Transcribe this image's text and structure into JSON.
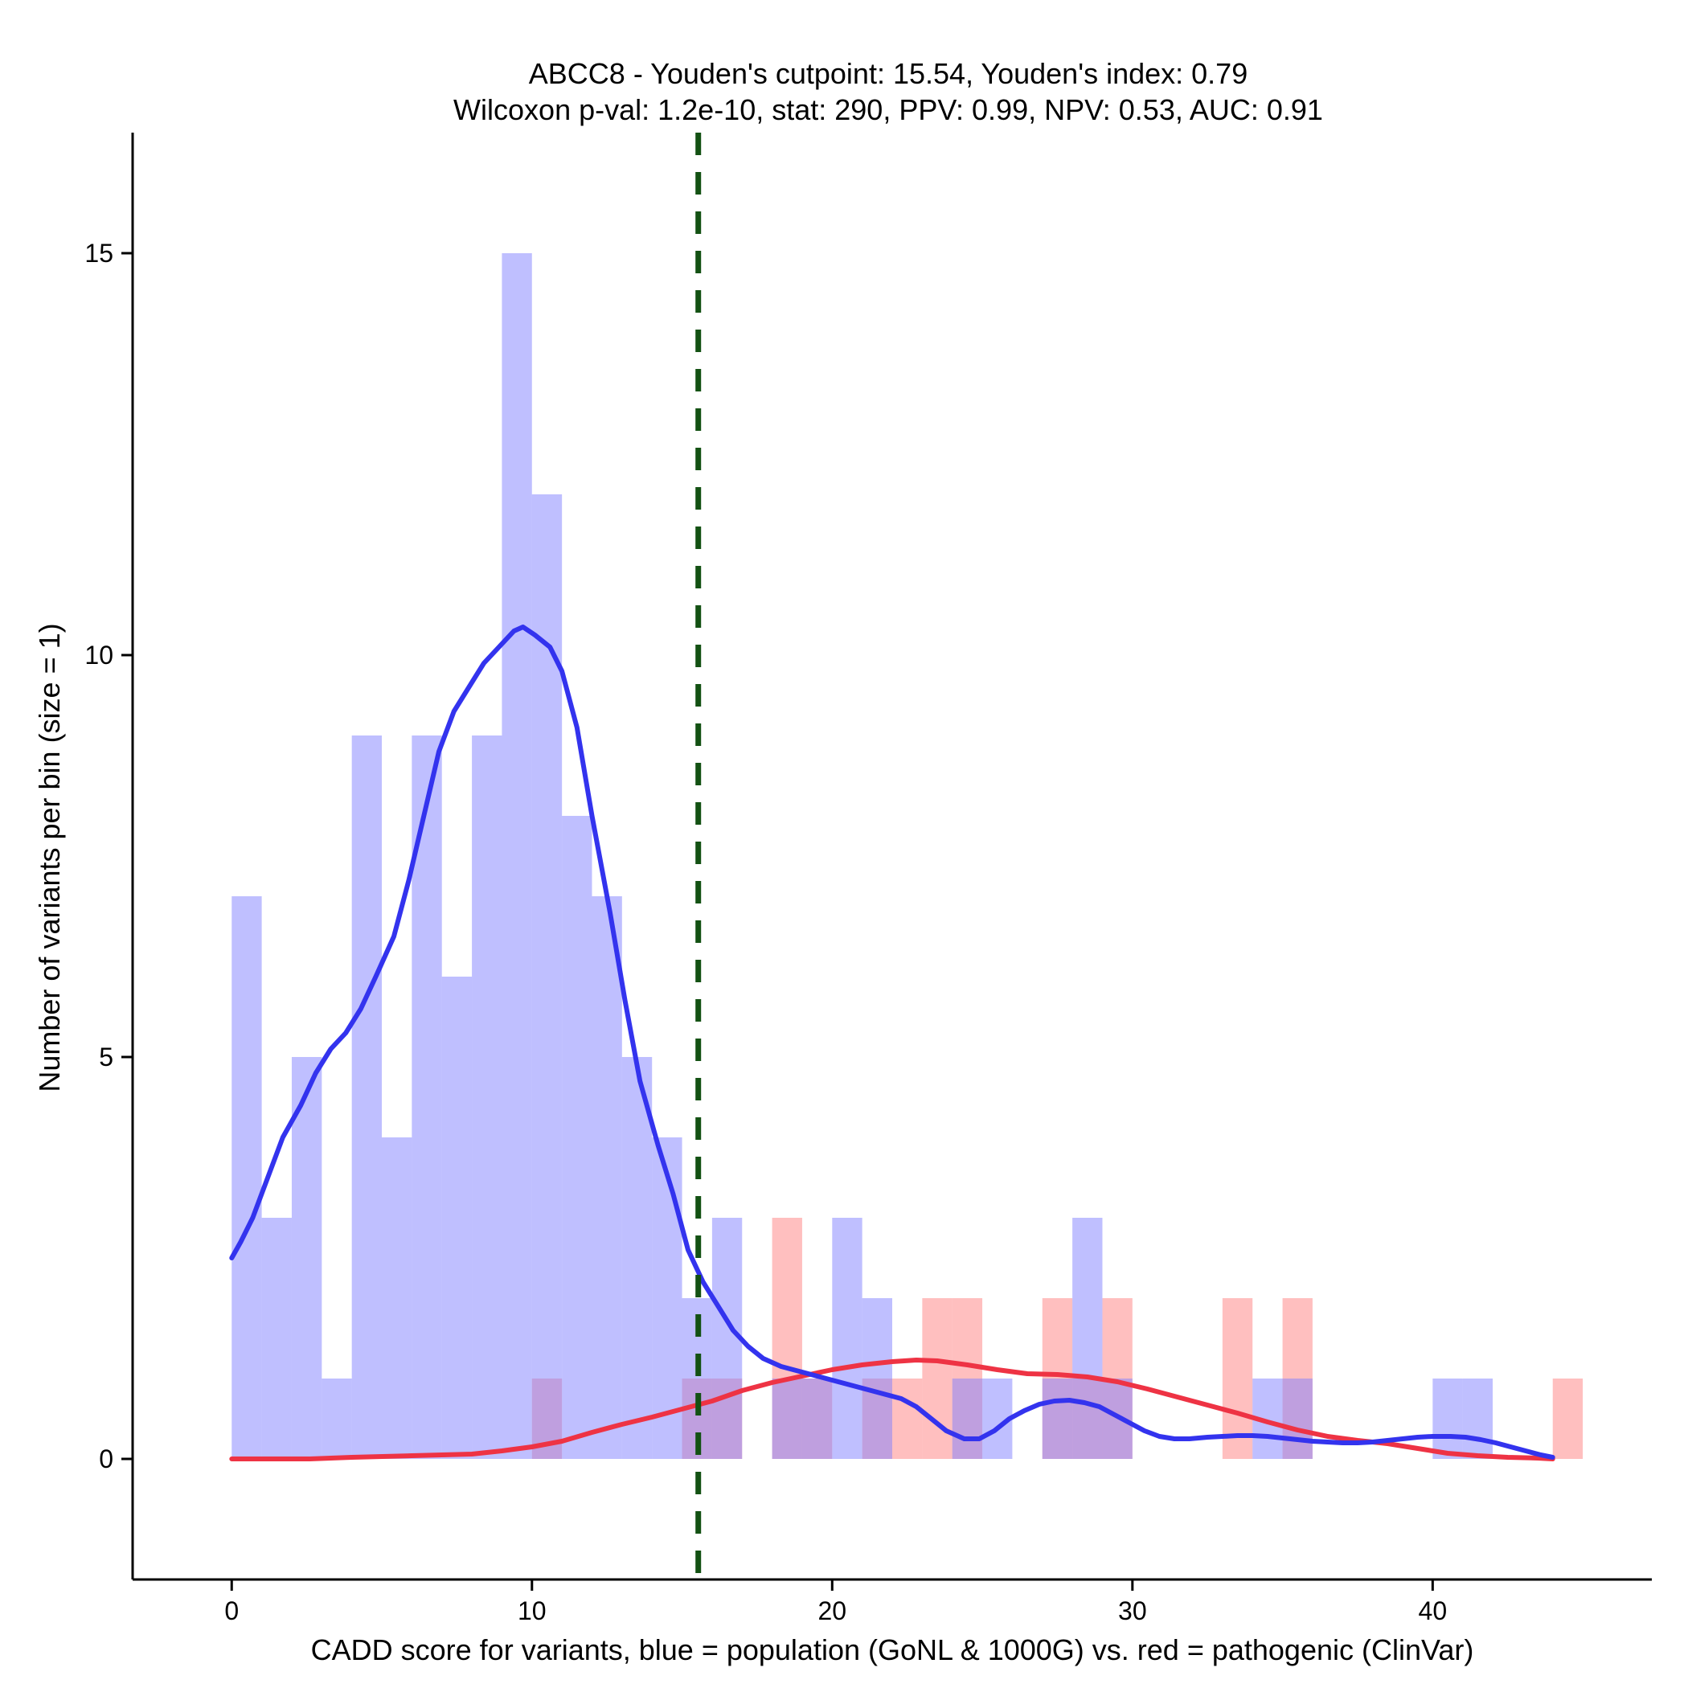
{
  "chart_data": {
    "type": "histogram",
    "title": "ABCC8 - Youden's cutpoint: 15.54, Youden's index: 0.79",
    "subtitle": "Wilcoxon p-val: 1.2e-10, stat: 290, PPV: 0.99, NPV: 0.53, AUC: 0.91",
    "xlabel": "CADD score for variants, blue = population (GoNL & 1000G) vs. red = pathogenic (ClinVar)",
    "ylabel": "Number of variants per bin (size = 1)",
    "xlim": [
      -3.3,
      47.3
    ],
    "ylim": [
      -1.5,
      16.5
    ],
    "x_ticks": [
      0,
      10,
      20,
      30,
      40
    ],
    "y_ticks": [
      0,
      5,
      10,
      15
    ],
    "bin_width": 1,
    "cutpoint": 15.54,
    "colors": {
      "population_fill": "#8080FF",
      "pathogenic_fill": "#FF8080",
      "population_line": "#3333EE",
      "pathogenic_line": "#EE3344",
      "cutpoint_line": "#135113"
    },
    "series": [
      {
        "name": "population (GoNL & 1000G)",
        "bins": [
          {
            "x": 0,
            "count": 7
          },
          {
            "x": 1,
            "count": 3
          },
          {
            "x": 2,
            "count": 5
          },
          {
            "x": 3,
            "count": 1
          },
          {
            "x": 4,
            "count": 9
          },
          {
            "x": 5,
            "count": 4
          },
          {
            "x": 6,
            "count": 9
          },
          {
            "x": 7,
            "count": 6
          },
          {
            "x": 8,
            "count": 9
          },
          {
            "x": 9,
            "count": 15
          },
          {
            "x": 10,
            "count": 12
          },
          {
            "x": 11,
            "count": 8
          },
          {
            "x": 12,
            "count": 7
          },
          {
            "x": 13,
            "count": 5
          },
          {
            "x": 14,
            "count": 4
          },
          {
            "x": 15,
            "count": 2
          },
          {
            "x": 16,
            "count": 3
          },
          {
            "x": 17,
            "count": 0
          },
          {
            "x": 18,
            "count": 1
          },
          {
            "x": 19,
            "count": 1
          },
          {
            "x": 20,
            "count": 3
          },
          {
            "x": 21,
            "count": 2
          },
          {
            "x": 22,
            "count": 0
          },
          {
            "x": 23,
            "count": 0
          },
          {
            "x": 24,
            "count": 1
          },
          {
            "x": 25,
            "count": 1
          },
          {
            "x": 26,
            "count": 0
          },
          {
            "x": 27,
            "count": 1
          },
          {
            "x": 28,
            "count": 3
          },
          {
            "x": 29,
            "count": 1
          },
          {
            "x": 30,
            "count": 0
          },
          {
            "x": 31,
            "count": 0
          },
          {
            "x": 32,
            "count": 0
          },
          {
            "x": 33,
            "count": 0
          },
          {
            "x": 34,
            "count": 1
          },
          {
            "x": 35,
            "count": 1
          },
          {
            "x": 36,
            "count": 0
          },
          {
            "x": 37,
            "count": 0
          },
          {
            "x": 38,
            "count": 0
          },
          {
            "x": 39,
            "count": 0
          },
          {
            "x": 40,
            "count": 1
          },
          {
            "x": 41,
            "count": 1
          }
        ],
        "density_curve": [
          [
            0,
            2.5
          ],
          [
            0.3,
            2.7
          ],
          [
            0.7,
            3.0
          ],
          [
            1.2,
            3.5
          ],
          [
            1.7,
            4.0
          ],
          [
            2.3,
            4.4
          ],
          [
            2.8,
            4.8
          ],
          [
            3.3,
            5.1
          ],
          [
            3.8,
            5.3
          ],
          [
            4.3,
            5.6
          ],
          [
            4.8,
            6.0
          ],
          [
            5.4,
            6.5
          ],
          [
            5.9,
            7.2
          ],
          [
            6.4,
            8.0
          ],
          [
            6.9,
            8.8
          ],
          [
            7.4,
            9.3
          ],
          [
            7.9,
            9.6
          ],
          [
            8.4,
            9.9
          ],
          [
            8.9,
            10.1
          ],
          [
            9.4,
            10.3
          ],
          [
            9.7,
            10.35
          ],
          [
            10.1,
            10.25
          ],
          [
            10.6,
            10.1
          ],
          [
            11.0,
            9.8
          ],
          [
            11.5,
            9.1
          ],
          [
            12.0,
            8.0
          ],
          [
            12.6,
            6.8
          ],
          [
            13.1,
            5.7
          ],
          [
            13.6,
            4.7
          ],
          [
            14.2,
            3.9
          ],
          [
            14.7,
            3.3
          ],
          [
            15.2,
            2.6
          ],
          [
            15.7,
            2.2
          ],
          [
            16.2,
            1.9
          ],
          [
            16.7,
            1.6
          ],
          [
            17.2,
            1.4
          ],
          [
            17.7,
            1.25
          ],
          [
            18.3,
            1.15
          ],
          [
            18.8,
            1.1
          ],
          [
            19.3,
            1.05
          ],
          [
            19.8,
            1.0
          ],
          [
            20.3,
            0.95
          ],
          [
            20.8,
            0.9
          ],
          [
            21.3,
            0.85
          ],
          [
            21.8,
            0.8
          ],
          [
            22.3,
            0.75
          ],
          [
            22.8,
            0.65
          ],
          [
            23.3,
            0.5
          ],
          [
            23.8,
            0.35
          ],
          [
            24.4,
            0.25
          ],
          [
            24.9,
            0.25
          ],
          [
            25.4,
            0.35
          ],
          [
            25.9,
            0.5
          ],
          [
            26.4,
            0.6
          ],
          [
            26.9,
            0.68
          ],
          [
            27.4,
            0.72
          ],
          [
            27.9,
            0.73
          ],
          [
            28.4,
            0.7
          ],
          [
            28.9,
            0.65
          ],
          [
            29.4,
            0.55
          ],
          [
            29.9,
            0.45
          ],
          [
            30.4,
            0.35
          ],
          [
            30.9,
            0.28
          ],
          [
            31.4,
            0.25
          ],
          [
            31.9,
            0.25
          ],
          [
            32.5,
            0.27
          ],
          [
            33.0,
            0.28
          ],
          [
            33.5,
            0.29
          ],
          [
            34.0,
            0.29
          ],
          [
            34.5,
            0.28
          ],
          [
            35.0,
            0.26
          ],
          [
            35.5,
            0.24
          ],
          [
            36.0,
            0.22
          ],
          [
            36.5,
            0.21
          ],
          [
            37.0,
            0.2
          ],
          [
            37.5,
            0.2
          ],
          [
            38.0,
            0.21
          ],
          [
            38.5,
            0.23
          ],
          [
            39.0,
            0.25
          ],
          [
            39.5,
            0.27
          ],
          [
            40.0,
            0.28
          ],
          [
            40.6,
            0.28
          ],
          [
            41.1,
            0.27
          ],
          [
            41.6,
            0.24
          ],
          [
            42.1,
            0.2
          ],
          [
            42.6,
            0.15
          ],
          [
            43.1,
            0.1
          ],
          [
            43.6,
            0.05
          ],
          [
            44.0,
            0.02
          ]
        ]
      },
      {
        "name": "pathogenic (ClinVar)",
        "bins": [
          {
            "x": 10,
            "count": 1
          },
          {
            "x": 15,
            "count": 1
          },
          {
            "x": 16,
            "count": 1
          },
          {
            "x": 18,
            "count": 3
          },
          {
            "x": 19,
            "count": 1
          },
          {
            "x": 21,
            "count": 1
          },
          {
            "x": 22,
            "count": 1
          },
          {
            "x": 23,
            "count": 2
          },
          {
            "x": 24,
            "count": 2
          },
          {
            "x": 27,
            "count": 2
          },
          {
            "x": 28,
            "count": 1
          },
          {
            "x": 29,
            "count": 2
          },
          {
            "x": 33,
            "count": 2
          },
          {
            "x": 35,
            "count": 2
          },
          {
            "x": 44,
            "count": 1
          }
        ],
        "density_curve": [
          [
            0,
            0.0
          ],
          [
            1.0,
            0.0
          ],
          [
            2.6,
            0.0
          ],
          [
            4.0,
            0.02
          ],
          [
            6.0,
            0.04
          ],
          [
            8.0,
            0.06
          ],
          [
            9.0,
            0.1
          ],
          [
            10.0,
            0.15
          ],
          [
            11.0,
            0.22
          ],
          [
            12.0,
            0.33
          ],
          [
            13.0,
            0.43
          ],
          [
            14.0,
            0.52
          ],
          [
            15.0,
            0.62
          ],
          [
            16.0,
            0.72
          ],
          [
            17.0,
            0.85
          ],
          [
            18.0,
            0.95
          ],
          [
            19.0,
            1.03
          ],
          [
            20.0,
            1.11
          ],
          [
            21.0,
            1.17
          ],
          [
            22.0,
            1.21
          ],
          [
            22.8,
            1.23
          ],
          [
            23.5,
            1.22
          ],
          [
            24.5,
            1.17
          ],
          [
            25.5,
            1.11
          ],
          [
            26.5,
            1.06
          ],
          [
            27.5,
            1.05
          ],
          [
            28.5,
            1.02
          ],
          [
            29.5,
            0.96
          ],
          [
            30.5,
            0.87
          ],
          [
            31.5,
            0.77
          ],
          [
            32.5,
            0.67
          ],
          [
            33.5,
            0.57
          ],
          [
            34.5,
            0.46
          ],
          [
            35.5,
            0.36
          ],
          [
            36.5,
            0.28
          ],
          [
            37.5,
            0.23
          ],
          [
            38.5,
            0.19
          ],
          [
            39.5,
            0.13
          ],
          [
            40.5,
            0.07
          ],
          [
            41.5,
            0.04
          ],
          [
            42.5,
            0.02
          ],
          [
            43.5,
            0.01
          ],
          [
            44.0,
            0.0
          ]
        ]
      }
    ]
  }
}
